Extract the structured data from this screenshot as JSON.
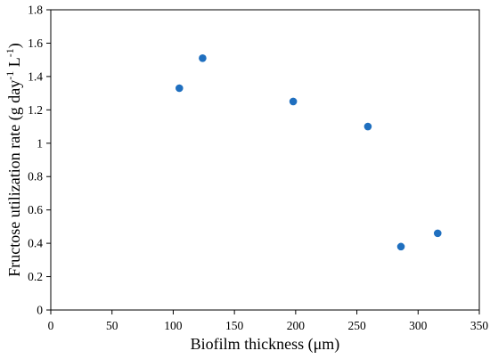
{
  "chart_data": {
    "type": "scatter",
    "title": "",
    "xlabel": "Biofilm thickness (μm)",
    "ylabel": {
      "prefix": "Fructose utilization rate (g day",
      "sup1": "-1",
      "mid": " L",
      "sup2": "-1",
      "suffix": ")"
    },
    "xlim": [
      0,
      350
    ],
    "ylim": [
      0,
      1.8
    ],
    "xticks": [
      "0",
      "50",
      "100",
      "150",
      "200",
      "250",
      "300",
      "350"
    ],
    "yticks": [
      "0",
      "0.2",
      "0.4",
      "0.6",
      "0.8",
      "1",
      "1.2",
      "1.4",
      "1.6",
      "1.8"
    ],
    "grid": false,
    "legend": "none",
    "marker_color": "#1f6fbf",
    "points": [
      {
        "x": 105,
        "y": 1.33
      },
      {
        "x": 124,
        "y": 1.51
      },
      {
        "x": 198,
        "y": 1.25
      },
      {
        "x": 259,
        "y": 1.1
      },
      {
        "x": 286,
        "y": 0.38
      },
      {
        "x": 316,
        "y": 0.46
      }
    ]
  }
}
